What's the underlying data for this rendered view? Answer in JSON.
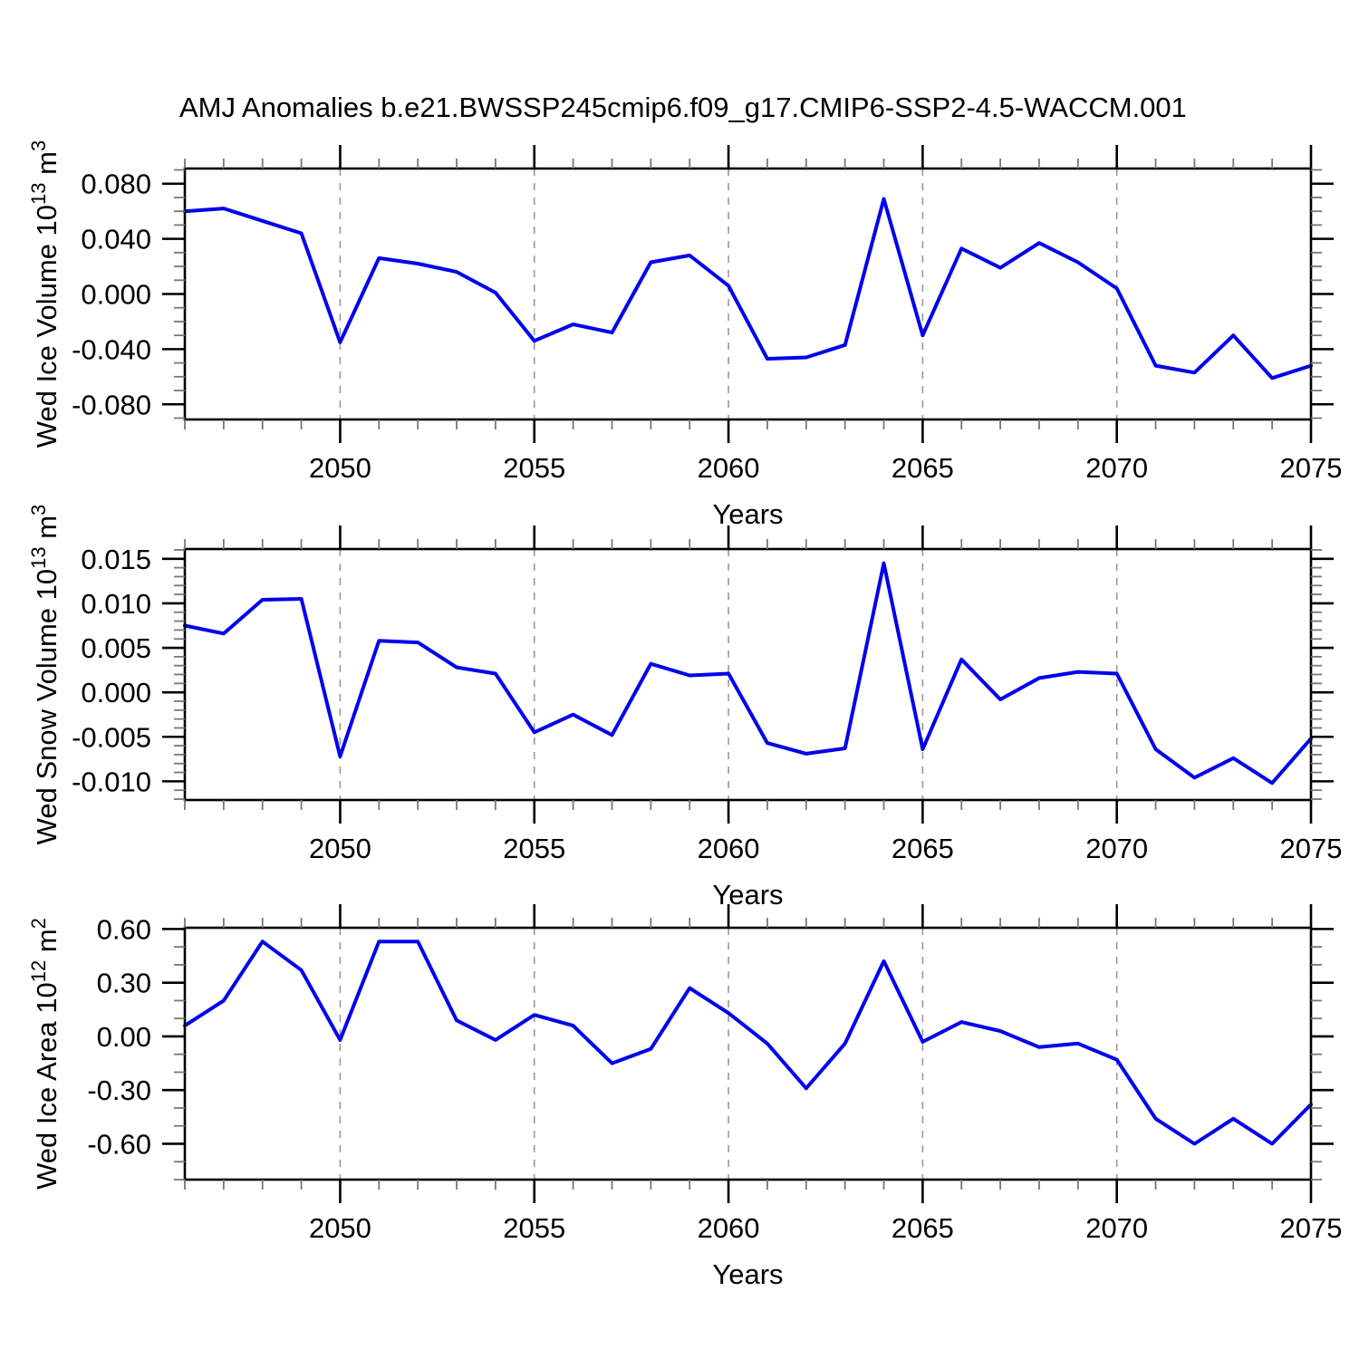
{
  "header": {
    "title": "AMJ Anomalies b.e21.BWSSP245cmip6.f09_g17.CMIP6-SSP2-4.5-WACCM.001"
  },
  "style": {
    "line_color": "#0000ee",
    "grid_color": "#999999",
    "axis_color": "#000000",
    "minor_tick_color": "#777777",
    "text_color": "#000000",
    "background": "#ffffff"
  },
  "chart_data": [
    {
      "type": "line",
      "title": "",
      "ylabel_parts": [
        {
          "text": "Wed Ice Volume 10",
          "sup": false
        },
        {
          "text": "13",
          "sup": true
        },
        {
          "text": " m",
          "sup": false
        },
        {
          "text": "3",
          "sup": true
        }
      ],
      "xlabel": "Years",
      "x": [
        2046,
        2047,
        2048,
        2049,
        2050,
        2051,
        2052,
        2053,
        2054,
        2055,
        2056,
        2057,
        2058,
        2059,
        2060,
        2061,
        2062,
        2063,
        2064,
        2065,
        2066,
        2067,
        2068,
        2069,
        2070,
        2071,
        2072,
        2073,
        2074,
        2075
      ],
      "values": [
        0.06,
        0.062,
        0.053,
        0.044,
        -0.035,
        0.026,
        0.022,
        0.016,
        0.001,
        -0.034,
        -0.022,
        -0.028,
        0.023,
        0.028,
        0.006,
        -0.047,
        -0.046,
        -0.037,
        0.069,
        -0.03,
        0.033,
        0.019,
        0.037,
        0.023,
        0.004,
        -0.052,
        -0.057,
        -0.03,
        -0.061,
        -0.052
      ],
      "xlim": [
        2046,
        2075
      ],
      "ylim": [
        -0.091,
        0.091
      ],
      "yticks": [
        0.08,
        0.04,
        0.0,
        -0.04,
        -0.08
      ],
      "ytick_labels": [
        "0.080",
        "0.040",
        "0.000",
        "-0.040",
        "-0.080"
      ],
      "ytick_minor_step": 0.01,
      "xticks_major": [
        2050,
        2055,
        2060,
        2065,
        2070,
        2075
      ],
      "xtick_labels": [
        "2050",
        "2055",
        "2060",
        "2065",
        "2070",
        "2075"
      ],
      "xtick_minor_step": 1,
      "grid_x": [
        2050,
        2055,
        2060,
        2065,
        2070
      ],
      "legend": "none",
      "grid": "vertical-dashed"
    },
    {
      "type": "line",
      "title": "",
      "ylabel_parts": [
        {
          "text": "Wed Snow Volume 10",
          "sup": false
        },
        {
          "text": "13",
          "sup": true
        },
        {
          "text": " m",
          "sup": false
        },
        {
          "text": "3",
          "sup": true
        }
      ],
      "xlabel": "Years",
      "x": [
        2046,
        2047,
        2048,
        2049,
        2050,
        2051,
        2052,
        2053,
        2054,
        2055,
        2056,
        2057,
        2058,
        2059,
        2060,
        2061,
        2062,
        2063,
        2064,
        2065,
        2066,
        2067,
        2068,
        2069,
        2070,
        2071,
        2072,
        2073,
        2074,
        2075
      ],
      "values": [
        0.0075,
        0.0066,
        0.0104,
        0.0105,
        -0.0072,
        0.0058,
        0.0056,
        0.0028,
        0.0021,
        -0.0045,
        -0.0025,
        -0.0048,
        0.0032,
        0.0019,
        0.0021,
        -0.0057,
        -0.0069,
        -0.0063,
        0.0145,
        -0.0064,
        0.0037,
        -0.0008,
        0.0016,
        0.0023,
        0.0021,
        -0.0064,
        -0.0096,
        -0.0074,
        -0.0102,
        -0.0052
      ],
      "xlim": [
        2046,
        2075
      ],
      "ylim": [
        -0.0121,
        0.0161
      ],
      "yticks": [
        0.015,
        0.01,
        0.005,
        0.0,
        -0.005,
        -0.01
      ],
      "ytick_labels": [
        "0.015",
        "0.010",
        "0.005",
        "0.000",
        "-0.005",
        "-0.010"
      ],
      "ytick_minor_step": 0.001,
      "xticks_major": [
        2050,
        2055,
        2060,
        2065,
        2070,
        2075
      ],
      "xtick_labels": [
        "2050",
        "2055",
        "2060",
        "2065",
        "2070",
        "2075"
      ],
      "xtick_minor_step": 1,
      "grid_x": [
        2050,
        2055,
        2060,
        2065,
        2070
      ],
      "legend": "none",
      "grid": "vertical-dashed"
    },
    {
      "type": "line",
      "title": "",
      "ylabel_parts": [
        {
          "text": "Wed Ice Area 10",
          "sup": false
        },
        {
          "text": "12",
          "sup": true
        },
        {
          "text": " m",
          "sup": false
        },
        {
          "text": "2",
          "sup": true
        }
      ],
      "xlabel": "Years",
      "x": [
        2046,
        2047,
        2048,
        2049,
        2050,
        2051,
        2052,
        2053,
        2054,
        2055,
        2056,
        2057,
        2058,
        2059,
        2060,
        2061,
        2062,
        2063,
        2064,
        2065,
        2066,
        2067,
        2068,
        2069,
        2070,
        2071,
        2072,
        2073,
        2074,
        2075
      ],
      "values": [
        0.06,
        0.2,
        0.53,
        0.37,
        -0.02,
        0.53,
        0.53,
        0.09,
        -0.02,
        0.12,
        0.06,
        -0.15,
        -0.07,
        0.27,
        0.13,
        -0.04,
        -0.29,
        -0.04,
        0.42,
        -0.03,
        0.08,
        0.03,
        -0.06,
        -0.04,
        -0.13,
        -0.46,
        -0.6,
        -0.46,
        -0.6,
        -0.38
      ],
      "xlim": [
        2046,
        2075
      ],
      "ylim": [
        -0.8,
        0.607
      ],
      "yticks": [
        0.6,
        0.3,
        0.0,
        -0.3,
        -0.6
      ],
      "ytick_labels": [
        "0.60",
        "0.30",
        "0.00",
        "-0.30",
        "-0.60"
      ],
      "ytick_minor_step": 0.1,
      "xticks_major": [
        2050,
        2055,
        2060,
        2065,
        2070,
        2075
      ],
      "xtick_labels": [
        "2050",
        "2055",
        "2060",
        "2065",
        "2070",
        "2075"
      ],
      "xtick_minor_step": 1,
      "grid_x": [
        2050,
        2055,
        2060,
        2065,
        2070
      ],
      "legend": "none",
      "grid": "vertical-dashed"
    }
  ]
}
